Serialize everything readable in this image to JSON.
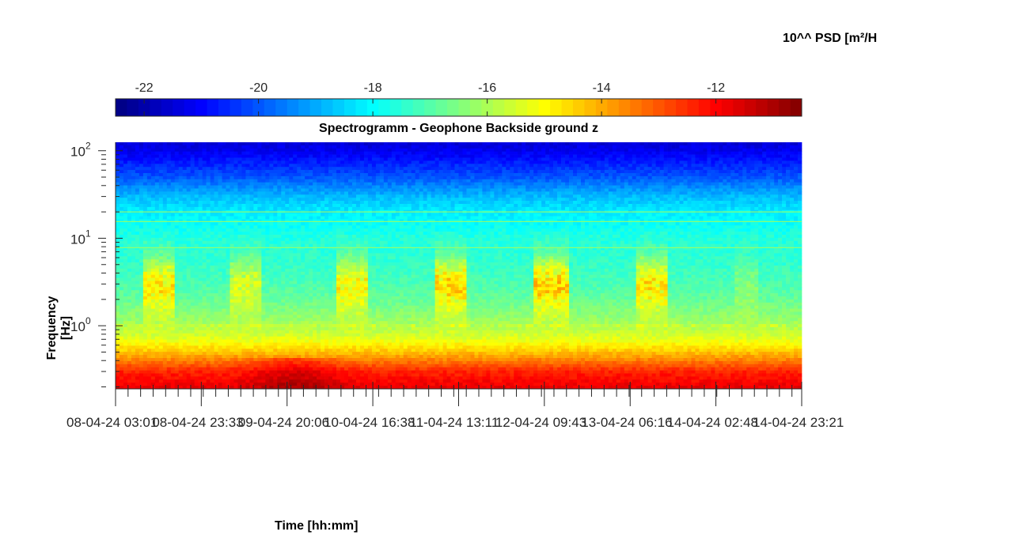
{
  "chart_data": {
    "type": "heatmap",
    "title": "Spectrogramm - Geophone Backside ground z",
    "xlabel": "Time [hh:mm]",
    "ylabel": "Frequency [Hz]",
    "colorbar_label": "10^^ PSD [m²/H",
    "colorbar": {
      "colormap": "jet",
      "range": [
        -22.5,
        -10.5
      ],
      "ticks": [
        -22,
        -20,
        -18,
        -16,
        -14,
        -12
      ],
      "tick_labels": [
        "-22",
        "-20",
        "-18",
        "-16",
        "-14",
        "-12"
      ]
    },
    "y_axis": {
      "scale": "log",
      "range": [
        0.19,
        125
      ],
      "ticks": [
        1,
        10,
        100
      ],
      "tick_labels": [
        "10",
        "10",
        "10"
      ],
      "tick_exponents": [
        "0",
        "1",
        "2"
      ]
    },
    "x_axis": {
      "ticks": [
        "2024-04-08 03:01",
        "2024-04-08 23:33",
        "2024-04-09 20:06",
        "2024-04-10 16:38",
        "2024-04-11 13:11",
        "2024-04-12 09:43",
        "2024-04-13 06:16",
        "2024-04-14 02:48",
        "2024-04-14 23:21"
      ],
      "tick_labels": [
        "08-04-24  03:01",
        "08-04-24  23:33",
        "09-04-24  20:06",
        "10-04-24  16:38",
        "11-04-24  13:11",
        "12-04-24  09:43",
        "13-04-24  06:16",
        "14-04-24  02:48",
        "14-04-24  23:21"
      ]
    },
    "psd_profile": {
      "frequency_hz": [
        0.19,
        0.3,
        0.5,
        0.7,
        1.0,
        2.0,
        3.0,
        5.0,
        10.0,
        20.0,
        30.0,
        50.0,
        100.0,
        125.0
      ],
      "log_psd_baseline": [
        -11.7,
        -12.4,
        -14.3,
        -15.3,
        -16.0,
        -16.8,
        -17.1,
        -17.4,
        -17.6,
        -18.2,
        -18.8,
        -20.0,
        -21.2,
        -21.5
      ]
    },
    "activity_bursts": [
      {
        "start": "2024-04-08 09:30",
        "end": "2024-04-08 17:30",
        "log_psd_boost": 2.2
      },
      {
        "start": "2024-04-09 06:00",
        "end": "2024-04-09 14:00",
        "log_psd_boost": 1.6
      },
      {
        "start": "2024-04-10 07:30",
        "end": "2024-04-10 15:30",
        "log_psd_boost": 2.0
      },
      {
        "start": "2024-04-11 07:30",
        "end": "2024-04-11 15:30",
        "log_psd_boost": 2.4
      },
      {
        "start": "2024-04-12 07:30",
        "end": "2024-04-12 15:30",
        "log_psd_boost": 2.5
      },
      {
        "start": "2024-04-13 07:30",
        "end": "2024-04-13 15:30",
        "log_psd_boost": 2.2
      },
      {
        "start": "2024-04-14 07:00",
        "end": "2024-04-14 13:00",
        "log_psd_boost": 0.6
      }
    ],
    "tonal_lines_hz": [
      1.0,
      7.8,
      15.5,
      20.0
    ],
    "grid": false,
    "legend": "none"
  }
}
